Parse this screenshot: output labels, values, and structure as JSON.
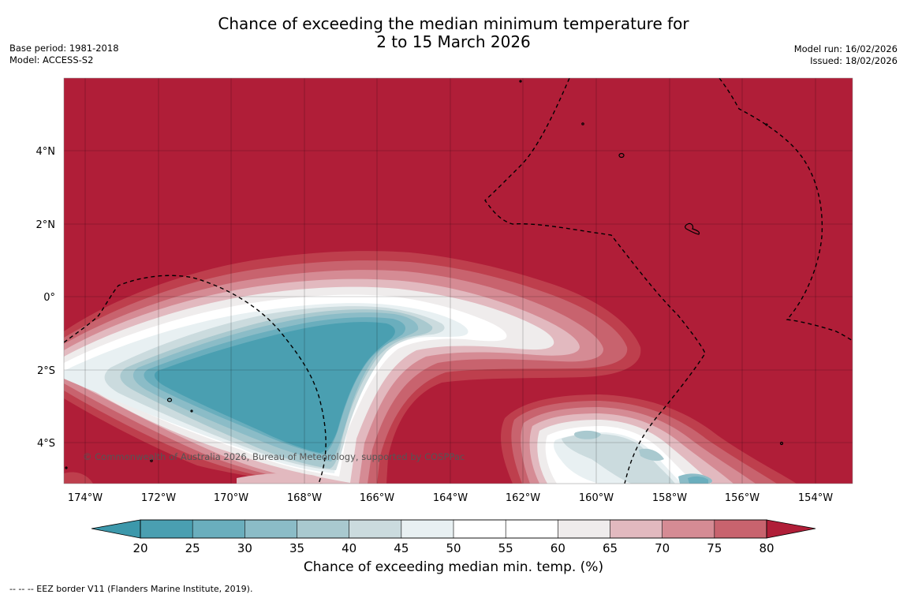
{
  "title": {
    "line1": "Chance of exceeding the median minimum temperature for",
    "line2": "2 to 15 March 2026"
  },
  "meta_left": {
    "base_period": "Base period: 1981-2018",
    "model": "Model: ACCESS-S2"
  },
  "meta_right": {
    "model_run": "Model run: 16/02/2026",
    "issued": "Issued: 18/02/2026"
  },
  "map": {
    "lon_labels": [
      "174°W",
      "172°W",
      "170°W",
      "168°W",
      "166°W",
      "164°W",
      "162°W",
      "160°W",
      "158°W",
      "156°W",
      "154°W"
    ],
    "lat_labels": [
      "4°N",
      "2°N",
      "0°",
      "2°S",
      "4°S"
    ],
    "copyright": "© Commonwealth of Australia 2026, Bureau of Meteorology, supported by COSPPac"
  },
  "colorbar": {
    "ticks": [
      "20",
      "25",
      "30",
      "35",
      "40",
      "45",
      "50",
      "55",
      "60",
      "65",
      "70",
      "75",
      "80"
    ],
    "colors": [
      "#4a9fb1",
      "#6aaebd",
      "#8bbcc7",
      "#a9c9cf",
      "#cbdbde",
      "#e8f0f2",
      "#ffffff",
      "#ffffff",
      "#efecec",
      "#e2b9bf",
      "#d58b94",
      "#c8636e",
      "#be3f4d"
    ],
    "under_color": "#3c98ab",
    "over_color": "#b01e38",
    "label": "Chance of exceeding median min. temp. (%)"
  },
  "footnote": "--  --  -- EEZ border V11 (Flanders Marine Institute, 2019)."
}
